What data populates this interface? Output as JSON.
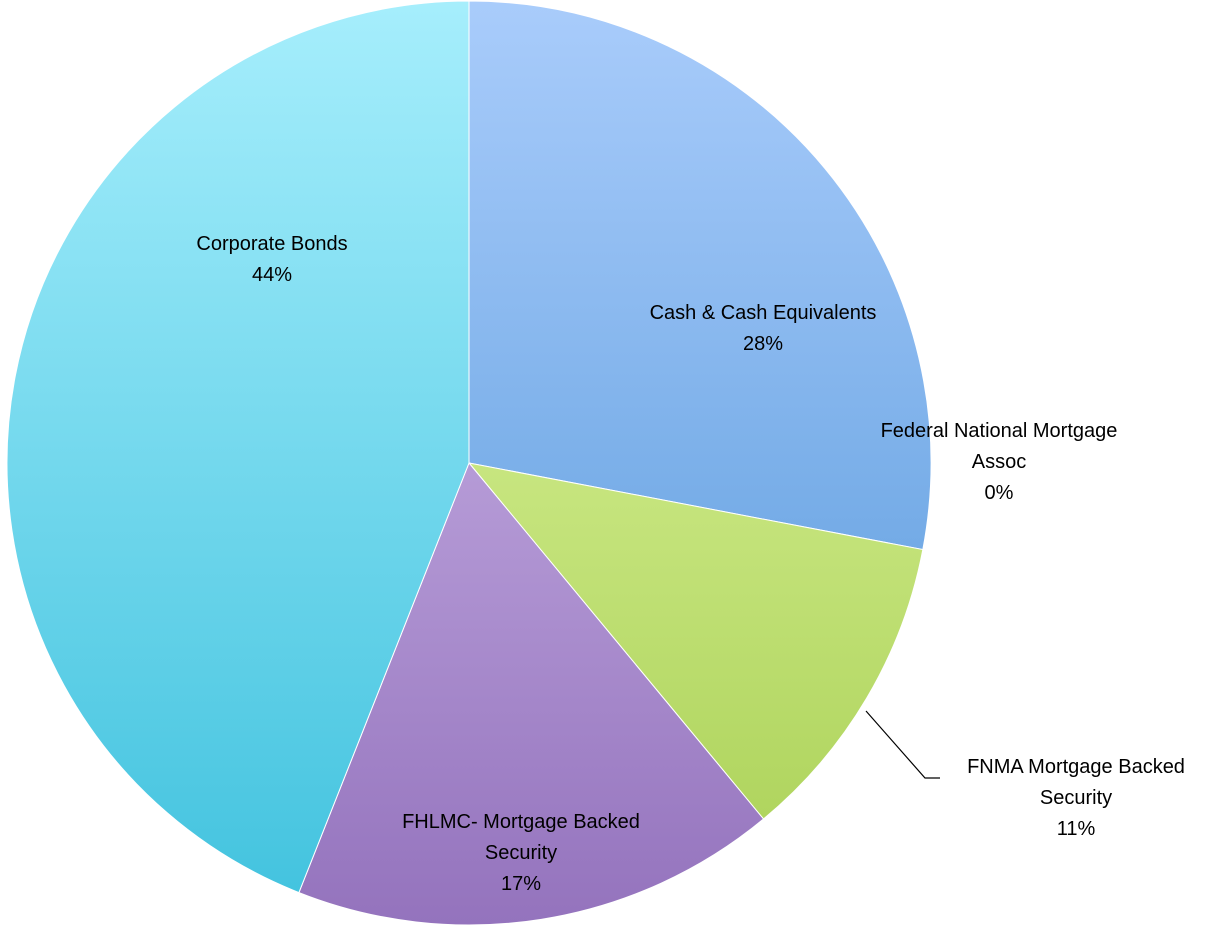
{
  "chart_data": {
    "type": "pie",
    "title": "",
    "start_angle_deg": 0,
    "direction": "clockwise",
    "slices": [
      {
        "name": "Cash & Cash Equivalents",
        "label_lines": [
          "Cash & Cash Equivalents"
        ],
        "value": 28,
        "percent_label": "28%",
        "color_light": "#a9ccfb",
        "color_dark": "#4f94d8"
      },
      {
        "name": "Federal National Mortgage Assoc",
        "label_lines": [
          "Federal National Mortgage",
          "Assoc"
        ],
        "value": 0,
        "percent_label": "0%",
        "color_light": "#f2ddaa",
        "color_dark": "#d8b766"
      },
      {
        "name": "FNMA Mortgage Backed Security",
        "label_lines": [
          "FNMA Mortgage Backed",
          "Security"
        ],
        "value": 11,
        "percent_label": "11%",
        "color_light": "#e6fbaa",
        "color_dark": "#a9d055"
      },
      {
        "name": "FHLMC- Mortgage Backed Security",
        "label_lines": [
          "FHLMC- Mortgage Backed",
          "Security"
        ],
        "value": 17,
        "percent_label": "17%",
        "color_light": "#d7c3f0",
        "color_dark": "#9473bd"
      },
      {
        "name": "Corporate Bonds",
        "label_lines": [
          "Corporate Bonds"
        ],
        "value": 44,
        "percent_label": "44%",
        "color_light": "#a6eefc",
        "color_dark": "#40c2de"
      }
    ]
  }
}
